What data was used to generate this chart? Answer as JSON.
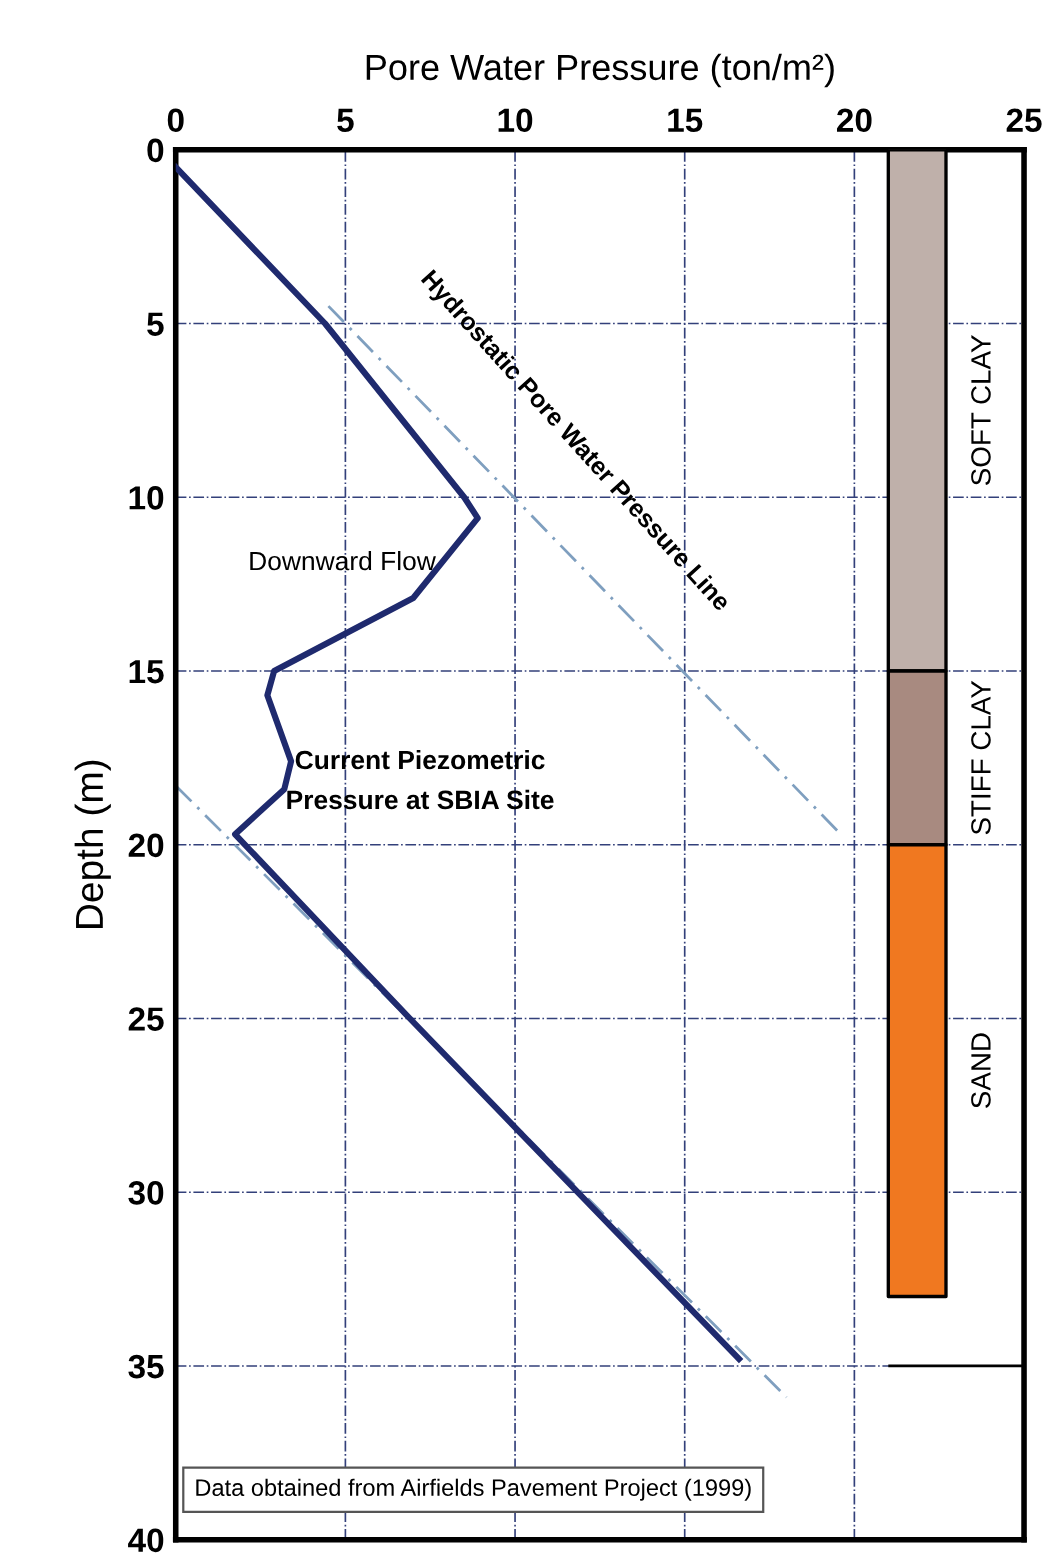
{
  "chart_data": {
    "type": "line",
    "xlabel": "Pore Water Pressure (ton/m²)",
    "ylabel": "Depth (m)",
    "xlim": [
      0,
      25
    ],
    "xticks": [
      0,
      5,
      10,
      15,
      20,
      25
    ],
    "ylim": [
      40,
      0
    ],
    "yticks": [
      0,
      5,
      10,
      15,
      20,
      25,
      30,
      35,
      40
    ],
    "grid": true,
    "marker": "none",
    "series": [
      {
        "color": "#1f2a6e",
        "line_style": "solid",
        "x": [
          0,
          4.4,
          8.5,
          8.9,
          7.0,
          2.9,
          2.7,
          3.4,
          3.2,
          1.75,
          6.9,
          16.6
        ],
        "values": [
          0.5,
          5,
          10,
          10.6,
          12.9,
          15,
          15.7,
          17.6,
          18.4,
          19.7,
          25,
          34.8
        ]
      },
      {
        "color": "#7f9fbf",
        "line_style": "dashed",
        "x": [
          4.5,
          19.5
        ],
        "values": [
          4.5,
          19.6
        ]
      },
      {
        "color": "#7f9fbf",
        "line_style": "dashed",
        "x": [
          0,
          18
        ],
        "values": [
          18.3,
          35.9
        ]
      }
    ],
    "bands": [
      {
        "axis": "y",
        "from": 0,
        "to": 15,
        "label": "SOFT CLAY",
        "color": "#bfb0aa"
      },
      {
        "axis": "y",
        "from": 15,
        "to": 20,
        "label": "STIFF CLAY",
        "color": "#a88a80"
      },
      {
        "axis": "y",
        "from": 20,
        "to": 33,
        "label": "SAND",
        "color": "#f07820"
      }
    ],
    "ref_lines": [
      {
        "axis": "y",
        "value": 35,
        "color": "#000000"
      }
    ],
    "annotations": [
      "Hydrostatic Pore Water Pressure Line",
      "Downward Flow",
      "Current Piezometric\nPressure at SBIA Site",
      "Data obtained from Airfields Pavement Project (1999)"
    ]
  }
}
